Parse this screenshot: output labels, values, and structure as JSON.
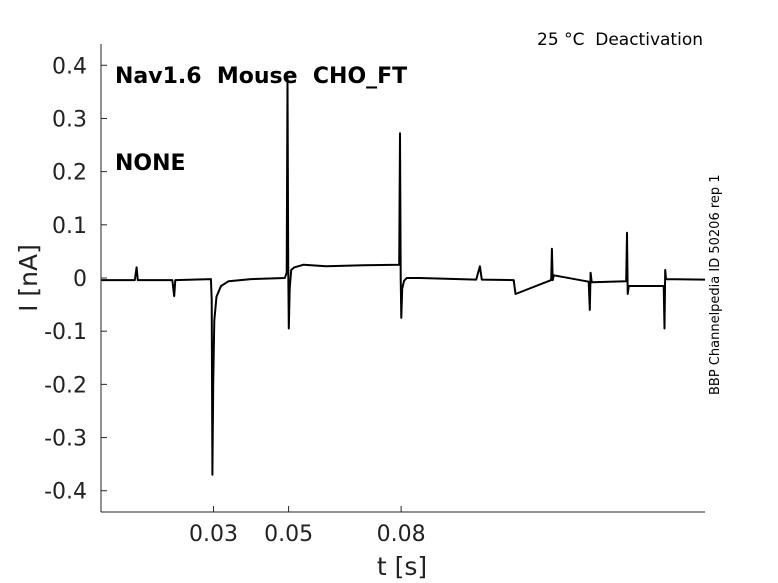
{
  "chart_data": {
    "type": "line",
    "title_line1": "Nav1.6  Mouse  CHO_FT",
    "title_line2": "NONE",
    "condition": "25 °C  Deactivation",
    "side_note": "BBP Channelpedia ID 50206 rep 1",
    "xlabel": "t [s]",
    "ylabel": "I [nA]",
    "xlim": [
      0.0,
      0.161
    ],
    "ylim": [
      -0.44,
      0.44
    ],
    "x_ticks": [
      0.03,
      0.05,
      0.08
    ],
    "x_tick_labels": [
      "0.03",
      "0.05",
      "0.08"
    ],
    "y_ticks": [
      0.4,
      0.3,
      0.2,
      0.1,
      0,
      -0.1,
      -0.2,
      -0.3,
      -0.4
    ],
    "y_tick_labels": [
      "0.4",
      "0.3",
      "0.2",
      "0.1",
      "0",
      "-0.1",
      "-0.2",
      "-0.3",
      "-0.4"
    ],
    "grid": false,
    "line_color": "#000000",
    "series": [
      {
        "x": [
          0.0,
          0.009,
          0.0095,
          0.0098,
          0.019,
          0.0195,
          0.0198,
          0.0293,
          0.0295,
          0.0297,
          0.0299,
          0.0302,
          0.0308,
          0.032,
          0.034,
          0.04,
          0.049,
          0.0495,
          0.0497,
          0.0499,
          0.05005,
          0.0503,
          0.0507,
          0.0515,
          0.054,
          0.06,
          0.07,
          0.0795,
          0.0797,
          0.0799,
          0.08005,
          0.0803,
          0.0808,
          0.0815,
          0.085,
          0.1,
          0.101,
          0.1015,
          0.11,
          0.1105,
          0.12,
          0.1202,
          0.1204,
          0.1207,
          0.13,
          0.1303,
          0.1305,
          0.1308,
          0.14,
          0.1402,
          0.1404,
          0.1407,
          0.15,
          0.1502,
          0.1504,
          0.1506,
          0.161
        ],
        "y": [
          -0.004,
          -0.004,
          0.02,
          -0.004,
          -0.004,
          -0.034,
          -0.004,
          -0.002,
          -0.04,
          -0.37,
          -0.2,
          -0.08,
          -0.035,
          -0.015,
          -0.006,
          -0.002,
          0.0,
          0.01,
          0.375,
          0.03,
          -0.095,
          -0.02,
          0.015,
          0.02,
          0.025,
          0.022,
          0.024,
          0.025,
          0.272,
          0.0,
          -0.075,
          -0.02,
          -0.005,
          0.0,
          0.0,
          -0.003,
          0.022,
          -0.003,
          -0.004,
          -0.03,
          -0.004,
          0.055,
          -0.004,
          0.005,
          -0.007,
          -0.06,
          0.01,
          -0.008,
          -0.006,
          0.085,
          -0.03,
          -0.015,
          -0.015,
          -0.095,
          0.015,
          -0.002,
          -0.003
        ]
      }
    ]
  }
}
